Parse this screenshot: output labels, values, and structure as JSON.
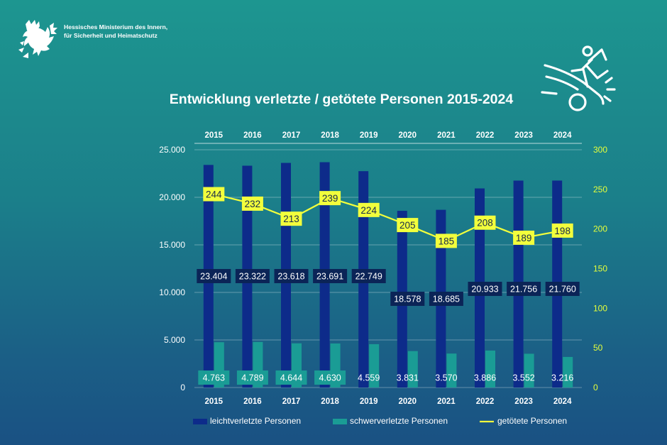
{
  "header": {
    "ministry_line1": "Hessisches Ministerium des Innern,",
    "ministry_line2": "für Sicherheit und Heimatschutz"
  },
  "icons": {
    "logo": "hessen-lion-icon",
    "accident": "car-accident-person-icon"
  },
  "colors": {
    "background_top": "#1d9690",
    "background_bottom": "#1a5183",
    "leicht": "#0d2b8a",
    "schwer": "#1a9c95",
    "getoetet": "#f2ff3c",
    "label_dark": "#0b2457",
    "label_teal": "#1a9c95",
    "axis_right": "#e6ff3a"
  },
  "chart_data": {
    "type": "bar",
    "title": "Entwicklung verletzte / getötete Personen 2015-2024",
    "categories": [
      "2015",
      "2016",
      "2017",
      "2018",
      "2019",
      "2020",
      "2021",
      "2022",
      "2023",
      "2024"
    ],
    "series": [
      {
        "name": "leichtverletzte Personen",
        "axis": "left",
        "values": [
          23404,
          23322,
          23618,
          23691,
          22749,
          18578,
          18685,
          20933,
          21756,
          21760
        ],
        "labels": [
          "23.404",
          "23.322",
          "23.618",
          "23.691",
          "22.749",
          "18.578",
          "18.685",
          "20.933",
          "21.756",
          "21.760"
        ]
      },
      {
        "name": "schwerverletzte Personen",
        "axis": "left",
        "values": [
          4763,
          4789,
          4644,
          4630,
          4559,
          3831,
          3570,
          3886,
          3552,
          3216
        ],
        "labels": [
          "4.763",
          "4.789",
          "4.644",
          "4.630",
          "4.559",
          "3.831",
          "3.570",
          "3.886",
          "3.552",
          "3.216"
        ]
      },
      {
        "name": "getötete Personen",
        "type": "line",
        "axis": "right",
        "values": [
          244,
          232,
          213,
          239,
          224,
          205,
          185,
          208,
          189,
          198
        ],
        "labels": [
          "244",
          "232",
          "213",
          "239",
          "224",
          "205",
          "185",
          "208",
          "189",
          "198"
        ]
      }
    ],
    "y_left": {
      "range": [
        0,
        25000
      ],
      "ticks": [
        0,
        5000,
        10000,
        15000,
        20000,
        25000
      ],
      "tick_labels": [
        "0",
        "5.000",
        "10.000",
        "15.000",
        "20.000",
        "25.000"
      ]
    },
    "y_right": {
      "range": [
        0,
        300
      ],
      "ticks": [
        0,
        50,
        100,
        150,
        200,
        250,
        300
      ],
      "tick_labels": [
        "0",
        "50",
        "100",
        "150",
        "200",
        "250",
        "300"
      ]
    },
    "grid": true,
    "legend": "bottom"
  }
}
